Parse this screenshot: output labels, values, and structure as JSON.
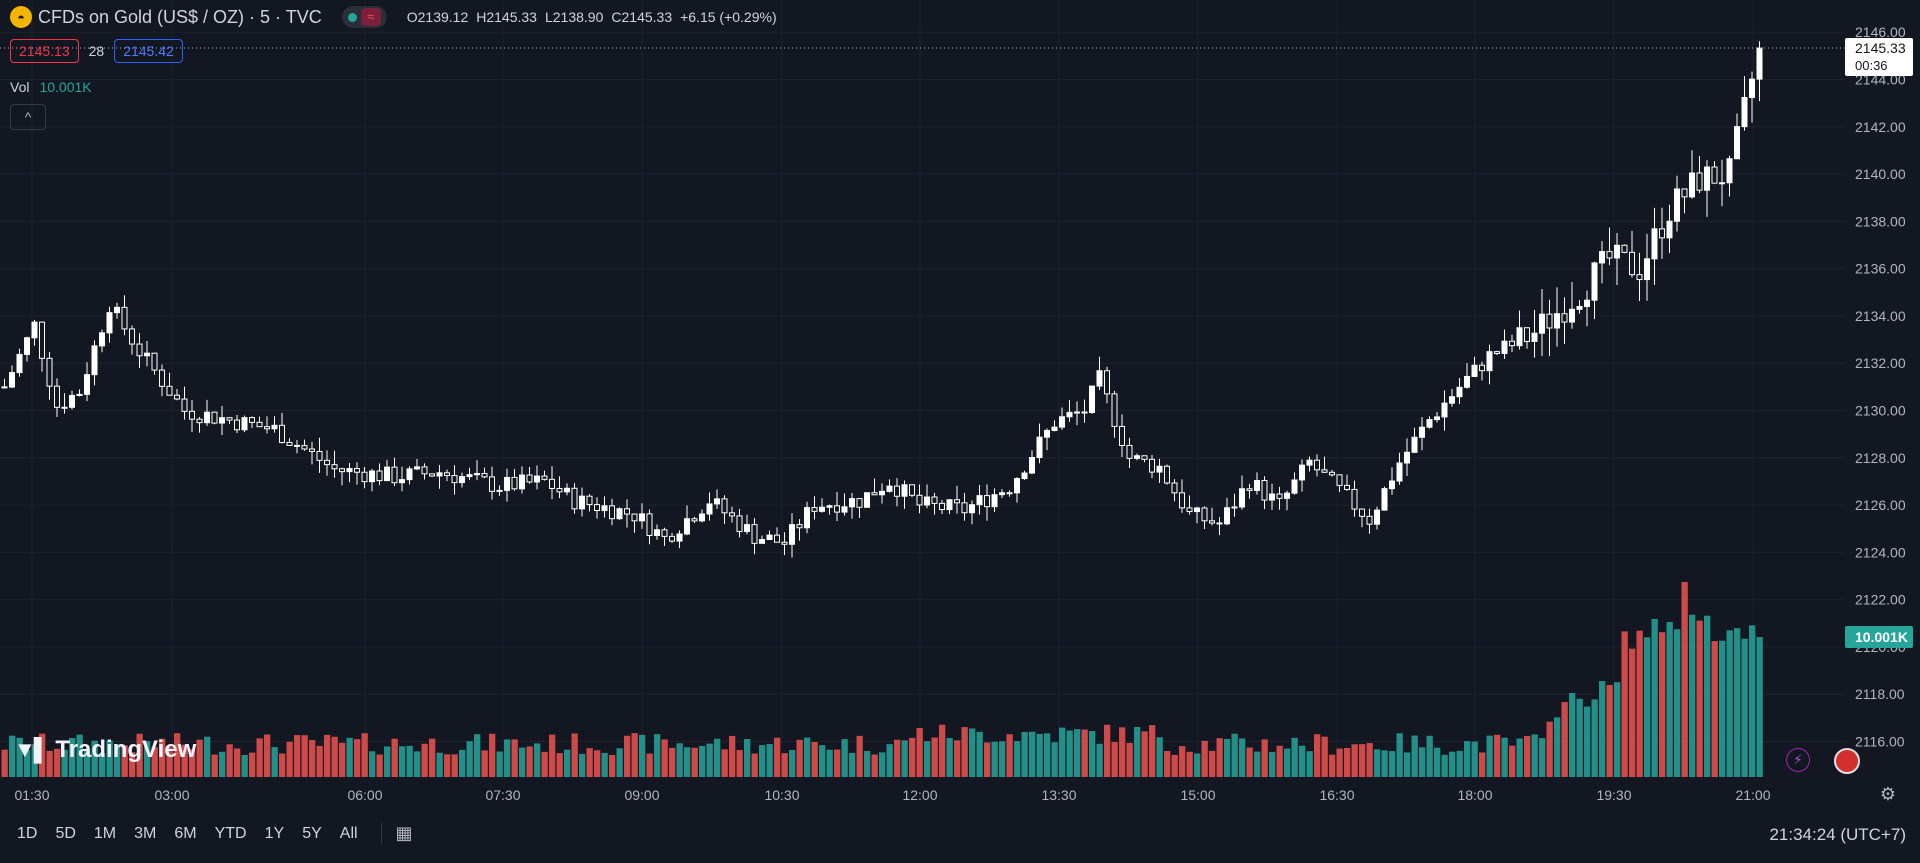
{
  "symbol": {
    "title": "CFDs on Gold (US$ / OZ) · 5 · TVC",
    "open_label": "O",
    "open": "2139.12",
    "high_label": "H",
    "high": "2145.33",
    "low_label": "L",
    "low": "2138.90",
    "close_label": "C",
    "close": "2145.33",
    "change": "+6.15 (+0.29%)",
    "bid": "2145.13",
    "spread": "28",
    "ask": "2145.42"
  },
  "volume": {
    "label": "Vol",
    "value": "10.001K"
  },
  "last_price": {
    "value": "2145.33",
    "countdown": "00:36"
  },
  "bottom_bar": {
    "ranges": [
      "1D",
      "5D",
      "1M",
      "3M",
      "6M",
      "YTD",
      "1Y",
      "5Y",
      "All"
    ],
    "clock": "21:34:24 (UTC+7)"
  },
  "branding": {
    "logo_text": "TradingView"
  },
  "colors": {
    "background": "#131722",
    "up_candle": "#ffffff",
    "down_candle": "#ffffff",
    "volume_up": "#26a69a",
    "volume_down": "#ef5350",
    "grid": "#1e222d"
  },
  "chart_data": {
    "type": "candlestick",
    "title": "",
    "y_axis_ticks": [
      2116,
      2118,
      2120,
      2122,
      2124,
      2126,
      2128,
      2130,
      2132,
      2134,
      2136,
      2138,
      2140,
      2142,
      2144,
      2146
    ],
    "ylim": [
      2114.5,
      2146.6
    ],
    "x_axis_ticks": [
      "01:30",
      "03:00",
      "06:00",
      "07:30",
      "09:00",
      "10:30",
      "12:00",
      "13:30",
      "15:00",
      "16:30",
      "18:00",
      "19:30",
      "21:00"
    ],
    "bar_count": 240,
    "price_path": [
      [
        0,
        2131.0
      ],
      [
        4,
        2133.6
      ],
      [
        7,
        2130.2
      ],
      [
        10,
        2130.8
      ],
      [
        14,
        2134.5
      ],
      [
        18,
        2132.5
      ],
      [
        24,
        2130.0
      ],
      [
        30,
        2129.6
      ],
      [
        36,
        2129.2
      ],
      [
        44,
        2127.5
      ],
      [
        52,
        2127.2
      ],
      [
        58,
        2127.4
      ],
      [
        66,
        2126.8
      ],
      [
        72,
        2127.0
      ],
      [
        76,
        2126.2
      ],
      [
        84,
        2125.6
      ],
      [
        88,
        2124.6
      ],
      [
        94,
        2126.2
      ],
      [
        100,
        2124.7
      ],
      [
        104,
        2124.4
      ],
      [
        108,
        2126.0
      ],
      [
        114,
        2126.2
      ],
      [
        118,
        2127.0
      ],
      [
        122,
        2126.0
      ],
      [
        128,
        2125.8
      ],
      [
        134,
        2126.8
      ],
      [
        140,
        2129.5
      ],
      [
        144,
        2130.0
      ],
      [
        146,
        2131.3
      ],
      [
        150,
        2128.0
      ],
      [
        154,
        2127.6
      ],
      [
        158,
        2125.6
      ],
      [
        162,
        2125.2
      ],
      [
        166,
        2127.0
      ],
      [
        170,
        2126.0
      ],
      [
        174,
        2127.8
      ],
      [
        178,
        2126.6
      ],
      [
        182,
        2125.4
      ],
      [
        186,
        2127.8
      ],
      [
        190,
        2129.6
      ],
      [
        194,
        2131.0
      ],
      [
        198,
        2132.3
      ],
      [
        204,
        2133.3
      ],
      [
        210,
        2135.0
      ],
      [
        214,
        2136.4
      ],
      [
        218,
        2136.0
      ],
      [
        222,
        2138.5
      ],
      [
        226,
        2139.8
      ],
      [
        230,
        2140.0
      ],
      [
        234,
        2145.33
      ]
    ],
    "volume_levels": "ordinal 1-10 relative bar heights; peak near 20:15, last bar 10.001K",
    "last_price": 2145.33
  }
}
